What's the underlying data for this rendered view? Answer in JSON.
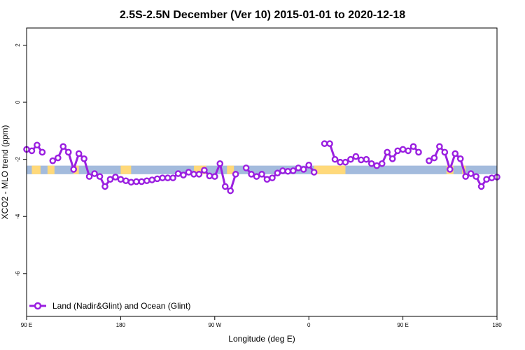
{
  "chart_data": {
    "type": "line",
    "title": "2.5S-2.5N December (Ver 10)   2015-01-01 to 2020-12-18",
    "xlabel": "Longitude (deg E)",
    "ylabel": "XCO2 - MLO trend (ppm)",
    "xlim": [
      -90,
      180
    ],
    "ylim": [
      -7.5,
      2.6
    ],
    "x_ticks": [
      {
        "value": -90,
        "label": "90 E"
      },
      {
        "value": -36,
        "label": "180"
      },
      {
        "value": 18,
        "label": "90 W"
      },
      {
        "value": 72,
        "label": "0"
      },
      {
        "value": 126,
        "label": "90 E"
      },
      {
        "value": 180,
        "label": "180"
      }
    ],
    "y_ticks": [
      {
        "value": 2,
        "label": "2"
      },
      {
        "value": 0,
        "label": "0"
      },
      {
        "value": -2,
        "label": "-2"
      },
      {
        "value": -4,
        "label": "-4"
      },
      {
        "value": -6,
        "label": "-6"
      }
    ],
    "grid": false,
    "legend": {
      "position": "bottom-left"
    },
    "colors": {
      "series": "#9a1fe0",
      "ocean_band": "#a3bbdd",
      "land_band": "#ffd97a"
    },
    "surface_band": {
      "y_range": [
        -2.52,
        -2.22
      ],
      "land_segments": [
        [
          -87,
          -82
        ],
        [
          -78,
          -74
        ],
        [
          -63,
          -60
        ],
        [
          6,
          13
        ],
        [
          25,
          29
        ],
        [
          75,
          93
        ],
        [
          -36,
          -30
        ],
        [
          151,
          155
        ],
        [
          160,
          162
        ]
      ]
    },
    "series": [
      {
        "name": "Land (Nadir&Glint) and Ocean (Glint)",
        "segments": [
          [
            [
              -90,
              -1.65
            ],
            [
              -87,
              -1.7
            ],
            [
              -84,
              -1.5
            ],
            [
              -81,
              -1.75
            ]
          ],
          [
            [
              -75,
              -2.05
            ],
            [
              -72,
              -1.95
            ],
            [
              -69,
              -1.55
            ],
            [
              -66,
              -1.75
            ],
            [
              -63,
              -2.35
            ],
            [
              -60,
              -1.8
            ],
            [
              -57,
              -1.98
            ],
            [
              -54,
              -2.6
            ],
            [
              -51,
              -2.5
            ],
            [
              -48,
              -2.6
            ],
            [
              -45,
              -2.95
            ],
            [
              -42,
              -2.7
            ],
            [
              -39,
              -2.62
            ],
            [
              -36,
              -2.7
            ],
            [
              -33,
              -2.75
            ],
            [
              -30,
              -2.8
            ],
            [
              -27,
              -2.78
            ],
            [
              -24,
              -2.78
            ],
            [
              -21,
              -2.75
            ],
            [
              -18,
              -2.72
            ],
            [
              -15,
              -2.68
            ],
            [
              -12,
              -2.65
            ],
            [
              -9,
              -2.65
            ],
            [
              -6,
              -2.65
            ],
            [
              -3,
              -2.5
            ],
            [
              0,
              -2.55
            ],
            [
              3,
              -2.45
            ],
            [
              6,
              -2.52
            ],
            [
              9,
              -2.52
            ],
            [
              12,
              -2.38
            ],
            [
              15,
              -2.58
            ],
            [
              18,
              -2.6
            ],
            [
              21,
              -2.15
            ],
            [
              24,
              -2.95
            ],
            [
              27,
              -3.1
            ],
            [
              30,
              -2.52
            ]
          ],
          [
            [
              36,
              -2.3
            ],
            [
              39,
              -2.52
            ],
            [
              42,
              -2.6
            ],
            [
              45,
              -2.52
            ],
            [
              48,
              -2.7
            ],
            [
              51,
              -2.65
            ],
            [
              54,
              -2.48
            ],
            [
              57,
              -2.4
            ],
            [
              60,
              -2.42
            ],
            [
              63,
              -2.4
            ],
            [
              66,
              -2.3
            ],
            [
              69,
              -2.35
            ],
            [
              72,
              -2.2
            ],
            [
              75,
              -2.45
            ]
          ],
          [
            [
              81,
              -1.45
            ],
            [
              84,
              -1.45
            ],
            [
              87,
              -2.0
            ],
            [
              90,
              -2.1
            ],
            [
              93,
              -2.1
            ],
            [
              96,
              -2.0
            ],
            [
              99,
              -1.9
            ],
            [
              102,
              -2.02
            ],
            [
              105,
              -2.0
            ],
            [
              108,
              -2.15
            ],
            [
              111,
              -2.22
            ],
            [
              114,
              -2.15
            ],
            [
              117,
              -1.75
            ],
            [
              120,
              -1.98
            ],
            [
              123,
              -1.7
            ],
            [
              126,
              -1.65
            ],
            [
              129,
              -1.7
            ],
            [
              132,
              -1.55
            ],
            [
              135,
              -1.75
            ]
          ],
          [
            [
              141,
              -2.05
            ],
            [
              144,
              -1.95
            ],
            [
              147,
              -1.55
            ],
            [
              150,
              -1.75
            ],
            [
              153,
              -2.35
            ],
            [
              156,
              -1.8
            ],
            [
              159,
              -1.98
            ],
            [
              162,
              -2.6
            ],
            [
              165,
              -2.5
            ],
            [
              168,
              -2.6
            ],
            [
              171,
              -2.95
            ],
            [
              174,
              -2.7
            ],
            [
              177,
              -2.65
            ],
            [
              180,
              -2.62
            ]
          ]
        ]
      }
    ]
  }
}
